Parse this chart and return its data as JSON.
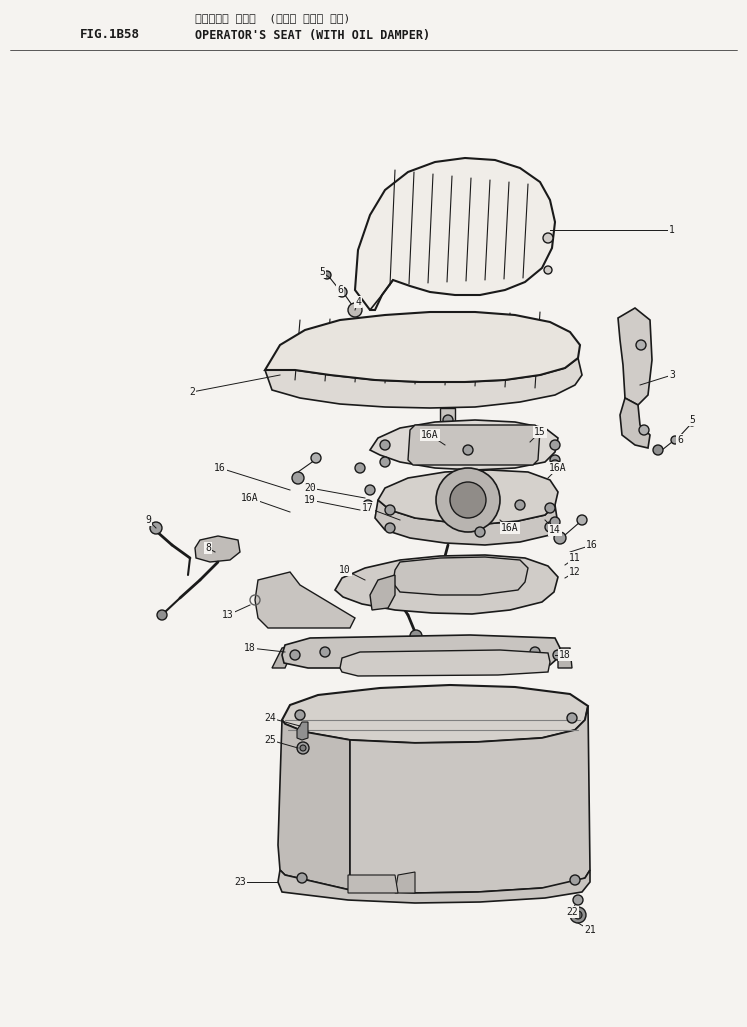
{
  "title_jp": "オペレータ シート  (オイル ダンパ 付き)",
  "title_en": "OPERATOR'S SEAT (WITH OIL DAMPER)",
  "fig_label": "FIG.1B58",
  "bg_color": "#f5f3f0",
  "line_color": "#1a1a1a",
  "font_size_header": 8,
  "font_size_label": 7
}
